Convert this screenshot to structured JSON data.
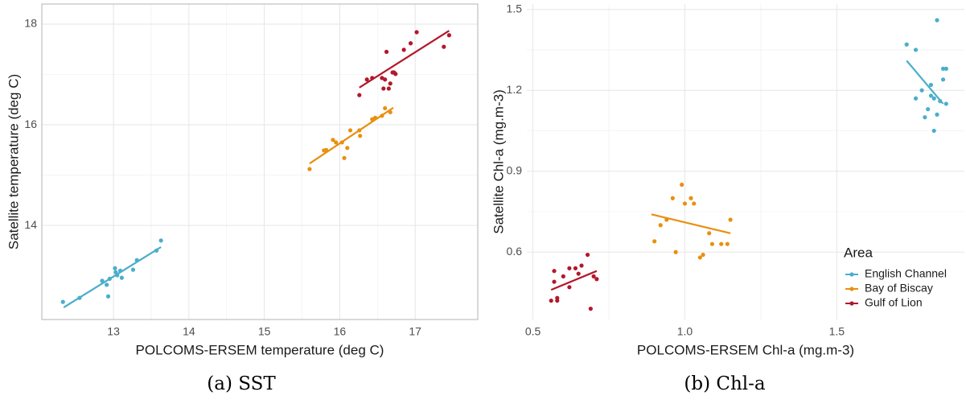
{
  "chart_data": [
    {
      "type": "scatter",
      "caption": "(a) SST",
      "xlabel": "POLCOMS-ERSEM temperature (deg C)",
      "ylabel": "Satellite temperature (deg C)",
      "xlim": [
        12.05,
        17.83
      ],
      "ylim": [
        12.13,
        18.4
      ],
      "xticks": [
        13,
        14,
        15,
        16,
        17
      ],
      "yticks": [
        14,
        16,
        18
      ],
      "grid": true,
      "border": true,
      "series": [
        {
          "color": "#4aaecb",
          "x": [
            12.33,
            12.55,
            12.85,
            12.91,
            12.93,
            12.95,
            13.02,
            13.03,
            13.05,
            13.09,
            13.11,
            13.26,
            13.31,
            13.57,
            13.63
          ],
          "y": [
            12.48,
            12.56,
            12.9,
            12.82,
            12.59,
            12.94,
            13.15,
            13.07,
            13.01,
            13.1,
            12.96,
            13.12,
            13.31,
            13.5,
            13.7
          ],
          "fit_x": [
            12.34,
            13.63
          ],
          "fit_y": [
            12.37,
            13.57
          ]
        },
        {
          "color": "#e8900f",
          "x": [
            15.6,
            15.79,
            15.82,
            15.91,
            15.95,
            16.03,
            16.06,
            16.1,
            16.14,
            16.26,
            16.27,
            16.43,
            16.47,
            16.56,
            16.6,
            16.67
          ],
          "y": [
            15.12,
            15.49,
            15.5,
            15.7,
            15.65,
            15.65,
            15.34,
            15.54,
            15.89,
            15.89,
            15.78,
            16.11,
            16.14,
            16.18,
            16.33,
            16.25
          ],
          "fit_x": [
            15.6,
            16.71
          ],
          "fit_y": [
            15.23,
            16.34
          ]
        },
        {
          "color": "#b2182b",
          "x": [
            16.26,
            16.36,
            16.43,
            16.56,
            16.6,
            16.58,
            16.65,
            16.67,
            16.7,
            16.72,
            16.74,
            16.85,
            16.94,
            17.02,
            17.38,
            17.45,
            16.62
          ],
          "y": [
            16.59,
            16.9,
            16.93,
            16.93,
            16.9,
            16.72,
            16.72,
            16.82,
            17.04,
            17.04,
            17.01,
            17.49,
            17.62,
            17.84,
            17.55,
            17.78,
            17.45
          ],
          "fit_x": [
            16.26,
            17.45
          ],
          "fit_y": [
            16.74,
            17.87
          ]
        }
      ]
    },
    {
      "type": "scatter",
      "caption": "(b) Chl-a",
      "xlabel": "POLCOMS-ERSEM Chl-a (mg.m-3)",
      "ylabel": "Satellite Chl-a (mg.m-3)",
      "xlim": [
        0.48,
        1.92
      ],
      "ylim": [
        0.35,
        1.52
      ],
      "xticks": [
        0.5,
        {
          "value": 1,
          "label": "1.0"
        },
        1.5
      ],
      "yticks": [
        0.6,
        0.9,
        1.2,
        1.5
      ],
      "grid": true,
      "border": false,
      "legend_title": "Area",
      "legend": "bottom-right",
      "series": [
        {
          "name": "English Channel",
          "color": "#4aaecb",
          "x": [
            1.73,
            1.76,
            1.83,
            1.76,
            1.78,
            1.79,
            1.8,
            1.81,
            1.81,
            1.82,
            1.82,
            1.83,
            1.84,
            1.85,
            1.86,
            1.85,
            1.86
          ],
          "y": [
            1.37,
            1.35,
            1.46,
            1.17,
            1.2,
            1.1,
            1.13,
            1.22,
            1.18,
            1.05,
            1.17,
            1.11,
            1.16,
            1.28,
            1.28,
            1.24,
            1.15
          ],
          "fit_x": [
            1.73,
            1.85
          ],
          "fit_y": [
            1.31,
            1.15
          ]
        },
        {
          "name": "Bay of Biscay",
          "color": "#e8900f",
          "x": [
            0.9,
            0.92,
            0.94,
            0.96,
            0.97,
            0.99,
            1.0,
            1.02,
            1.03,
            1.05,
            1.06,
            1.08,
            1.09,
            1.12,
            1.14,
            1.15
          ],
          "y": [
            0.64,
            0.7,
            0.72,
            0.8,
            0.6,
            0.85,
            0.78,
            0.8,
            0.78,
            0.58,
            0.59,
            0.67,
            0.63,
            0.63,
            0.63,
            0.72
          ],
          "fit_x": [
            0.89,
            1.15
          ],
          "fit_y": [
            0.74,
            0.67
          ]
        },
        {
          "name": "Gulf of Lion",
          "color": "#b2182b",
          "x": [
            0.56,
            0.57,
            0.57,
            0.58,
            0.58,
            0.6,
            0.62,
            0.62,
            0.64,
            0.65,
            0.66,
            0.68,
            0.69,
            0.7,
            0.71
          ],
          "y": [
            0.42,
            0.53,
            0.49,
            0.42,
            0.43,
            0.51,
            0.47,
            0.54,
            0.54,
            0.52,
            0.55,
            0.59,
            0.39,
            0.51,
            0.5
          ],
          "fit_x": [
            0.56,
            0.71
          ],
          "fit_y": [
            0.46,
            0.53
          ]
        }
      ]
    }
  ]
}
